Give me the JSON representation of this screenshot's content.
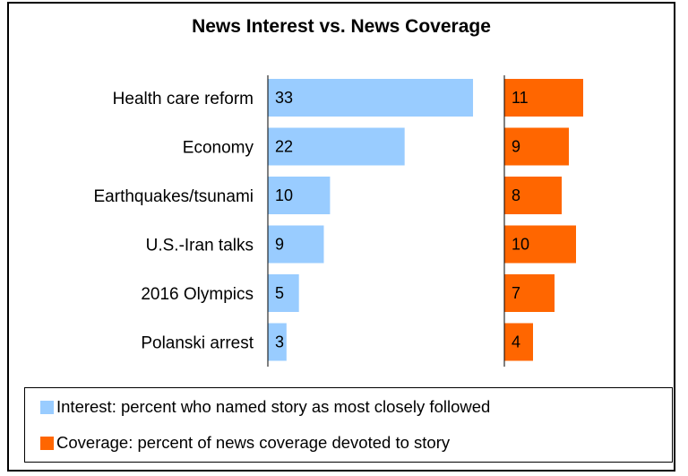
{
  "chart_data": {
    "type": "bar",
    "title": "News Interest vs. News Coverage",
    "categories": [
      "Health care reform",
      "Economy",
      "Earthquakes/tsunami",
      "U.S.-Iran talks",
      "2016 Olympics",
      "Polanski arrest"
    ],
    "series": [
      {
        "name": "Interest: percent who named story as most closely followed",
        "values": [
          33,
          22,
          10,
          9,
          5,
          3
        ],
        "color": "#99ccff"
      },
      {
        "name": "Coverage: percent of news coverage devoted to story",
        "values": [
          11,
          9,
          8,
          10,
          7,
          4
        ],
        "color": "#ff6600"
      }
    ],
    "legend": "bottom",
    "grid": false
  }
}
